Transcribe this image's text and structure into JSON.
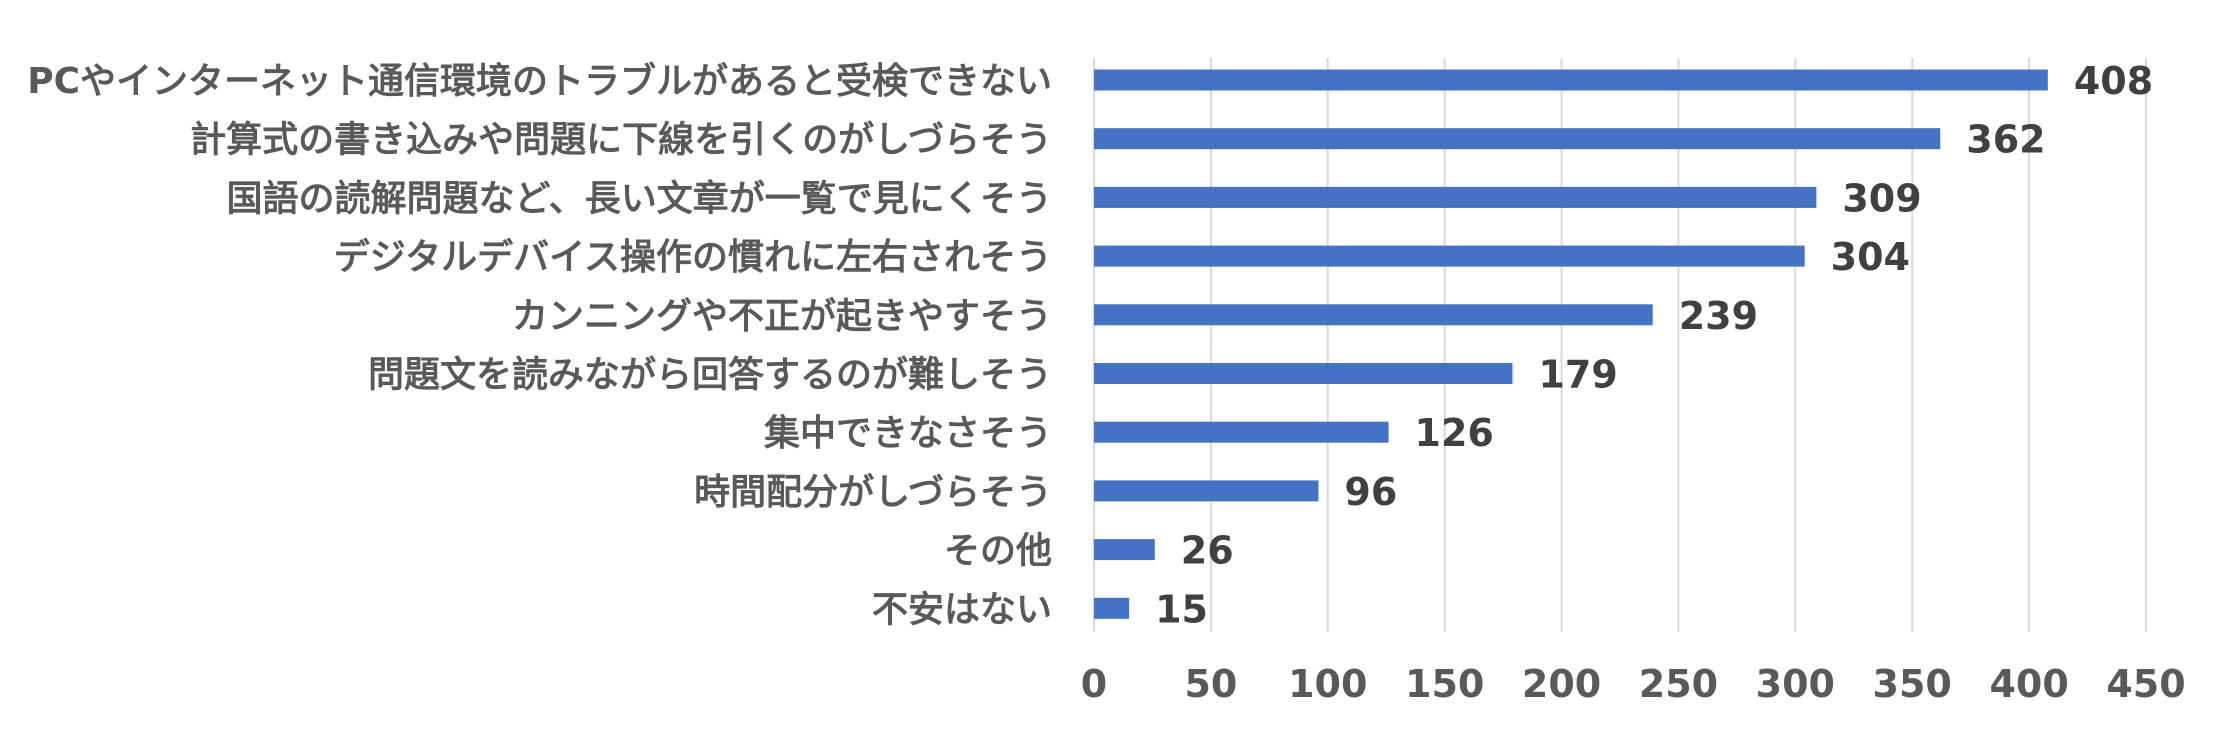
{
  "chart_data": {
    "type": "bar",
    "orientation": "horizontal",
    "categories": [
      "PCやインターネット通信環境のトラブルがあると受検できない",
      "計算式の書き込みや問題に下線を引くのがしづらそう",
      "国語の読解問題など、長い文章が一覧で見にくそう",
      "デジタルデバイス操作の慣れに左右されそう",
      "カンニングや不正が起きやすそう",
      "問題文を読みながら回答するのが難しそう",
      "集中できなさそう",
      "時間配分がしづらそう",
      "その他",
      "不安はない"
    ],
    "values": [
      408,
      362,
      309,
      304,
      239,
      179,
      126,
      96,
      26,
      15
    ],
    "xlim": [
      0,
      450
    ],
    "xticks": [
      0,
      50,
      100,
      150,
      200,
      250,
      300,
      350,
      400,
      450
    ],
    "xtick_labels": [
      "0",
      "50",
      "100",
      "150",
      "200",
      "250",
      "300",
      "350",
      "400",
      "450"
    ],
    "grid": "vertical",
    "legend": "none",
    "bar_color": "#4472C4"
  }
}
